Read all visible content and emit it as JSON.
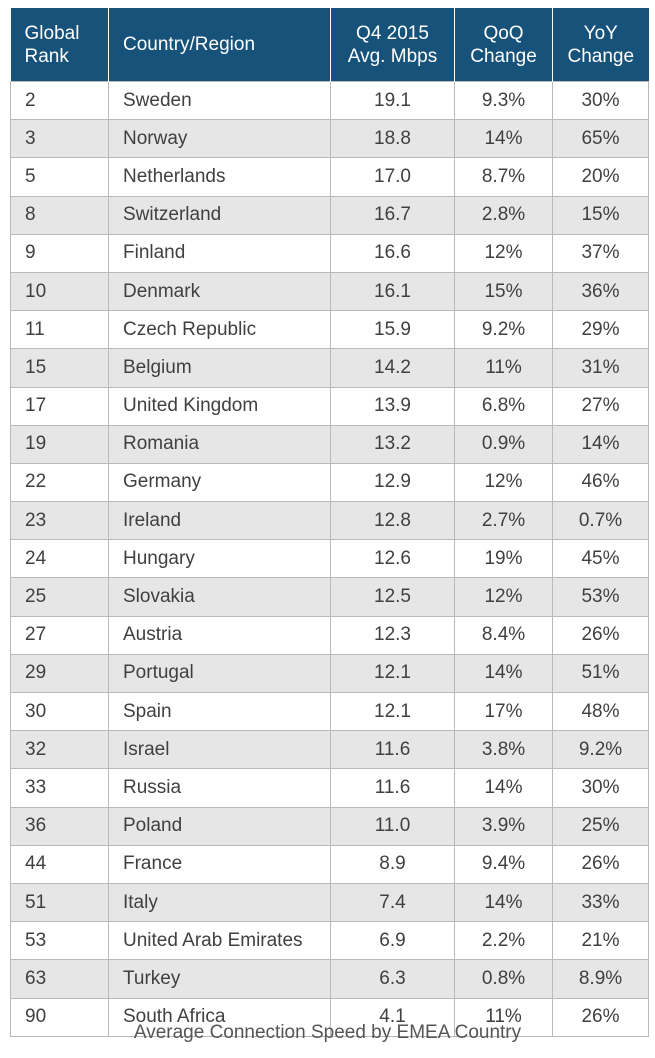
{
  "chart_data": {
    "type": "table",
    "title": "Average Connection Speed by EMEA Country",
    "columns": [
      {
        "key": "rank",
        "label_lines": [
          "Global",
          "Rank"
        ],
        "align": "left"
      },
      {
        "key": "country",
        "label_lines": [
          "Country/Region"
        ],
        "align": "left"
      },
      {
        "key": "speed",
        "label_lines": [
          "Q4 2015",
          "Avg. Mbps"
        ],
        "align": "center"
      },
      {
        "key": "qoq",
        "label_lines": [
          "QoQ",
          "Change"
        ],
        "align": "center"
      },
      {
        "key": "yoy",
        "label_lines": [
          "YoY",
          "Change"
        ],
        "align": "center"
      }
    ],
    "rows": [
      [
        "2",
        "Sweden",
        "19.1",
        "9.3%",
        "30%"
      ],
      [
        "3",
        "Norway",
        "18.8",
        "14%",
        "65%"
      ],
      [
        "5",
        "Netherlands",
        "17.0",
        "8.7%",
        "20%"
      ],
      [
        "8",
        "Switzerland",
        "16.7",
        "2.8%",
        "15%"
      ],
      [
        "9",
        "Finland",
        "16.6",
        "12%",
        "37%"
      ],
      [
        "10",
        "Denmark",
        "16.1",
        "15%",
        "36%"
      ],
      [
        "11",
        "Czech Republic",
        "15.9",
        "9.2%",
        "29%"
      ],
      [
        "15",
        "Belgium",
        "14.2",
        "11%",
        "31%"
      ],
      [
        "17",
        "United Kingdom",
        "13.9",
        "6.8%",
        "27%"
      ],
      [
        "19",
        "Romania",
        "13.2",
        "0.9%",
        "14%"
      ],
      [
        "22",
        "Germany",
        "12.9",
        "12%",
        "46%"
      ],
      [
        "23",
        "Ireland",
        "12.8",
        "2.7%",
        "0.7%"
      ],
      [
        "24",
        "Hungary",
        "12.6",
        "19%",
        "45%"
      ],
      [
        "25",
        "Slovakia",
        "12.5",
        "12%",
        "53%"
      ],
      [
        "27",
        "Austria",
        "12.3",
        "8.4%",
        "26%"
      ],
      [
        "29",
        "Portugal",
        "12.1",
        "14%",
        "51%"
      ],
      [
        "30",
        "Spain",
        "12.1",
        "17%",
        "48%"
      ],
      [
        "32",
        "Israel",
        "11.6",
        "3.8%",
        "9.2%"
      ],
      [
        "33",
        "Russia",
        "11.6",
        "14%",
        "30%"
      ],
      [
        "36",
        "Poland",
        "11.0",
        "3.9%",
        "25%"
      ],
      [
        "44",
        "France",
        "8.9",
        "9.4%",
        "26%"
      ],
      [
        "51",
        "Italy",
        "7.4",
        "14%",
        "33%"
      ],
      [
        "53",
        "United Arab Emirates",
        "6.9",
        "2.2%",
        "21%"
      ],
      [
        "63",
        "Turkey",
        "6.3",
        "0.8%",
        "8.9%"
      ],
      [
        "90",
        "South Africa",
        "4.1",
        "11%",
        "26%"
      ]
    ]
  },
  "colors": {
    "header_bg": "#17527a",
    "header_text": "#ffffff",
    "row_alt_bg": "#e6e6e6",
    "grid": "#b9b9b9",
    "cell_text": "#404040"
  }
}
